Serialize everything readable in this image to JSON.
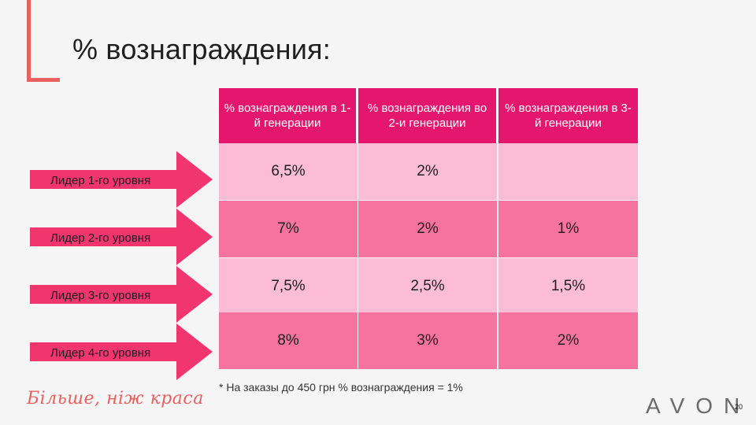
{
  "title": "% вознаграждения:",
  "headers": [
    "% вознаграждения в 1-й генерации",
    "% вознаграждения во 2-и генерации",
    "% вознаграждения в 3-й генерации"
  ],
  "rows": [
    {
      "label": "Лидер 1-го уровня",
      "values": [
        "6,5%",
        "2%",
        ""
      ]
    },
    {
      "label": "Лидер 2-го уровня",
      "values": [
        "7%",
        "2%",
        "1%"
      ]
    },
    {
      "label": "Лидер 3-го уровня",
      "values": [
        "7,5%",
        "2,5%",
        "1,5%"
      ]
    },
    {
      "label": "Лидер 4-го уровня",
      "values": [
        "8%",
        "3%",
        "2%"
      ]
    }
  ],
  "footnote": "* На заказы до 450 грн % вознаграждения = 1%",
  "slogan": "Більше, ніж краса",
  "brand": "AVON",
  "page_number": "20",
  "colors": {
    "accent": "#e8615f",
    "header": "#e5166e",
    "row_light": "#fbbcd4",
    "row_dark": "#f7739f",
    "arrow": "#f0356f"
  }
}
